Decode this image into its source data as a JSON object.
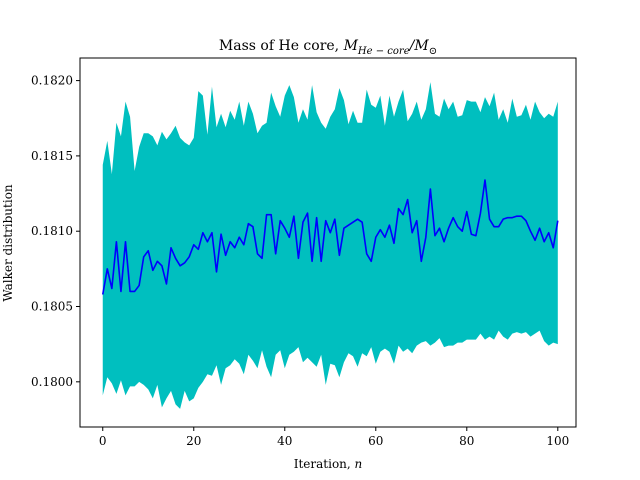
{
  "chart_data": {
    "type": "line",
    "title_main": "Mass of He core, ",
    "title_math_base": "M",
    "title_math_sub": "He − core",
    "title_math_tail": "/M",
    "title_math_tail_sub": "⊙",
    "xlabel_text": "Iteration, ",
    "xlabel_math": "n",
    "ylabel": "Walker distribution",
    "xlim": [
      -5,
      104
    ],
    "ylim": [
      0.1797,
      0.18215
    ],
    "xticks": [
      0,
      20,
      40,
      60,
      80,
      100
    ],
    "yticks": [
      0.18,
      0.1805,
      0.181,
      0.1815,
      0.182
    ],
    "ytick_labels": [
      "0.1800",
      "0.1805",
      "0.1810",
      "0.1815",
      "0.1820"
    ],
    "line_color": "#0000ff",
    "band_color": "#00bfbf",
    "series": [
      {
        "values": [
          0.18058,
          0.18075,
          0.18062,
          0.18093,
          0.1806,
          0.18093,
          0.1806,
          0.1806,
          0.18064,
          0.18083,
          0.18087,
          0.18074,
          0.1808,
          0.18077,
          0.18065,
          0.18089,
          0.18082,
          0.18077,
          0.18079,
          0.18083,
          0.18091,
          0.18088,
          0.18099,
          0.18093,
          0.18099,
          0.18073,
          0.18098,
          0.18084,
          0.18093,
          0.18089,
          0.18096,
          0.18091,
          0.18105,
          0.18103,
          0.18085,
          0.18082,
          0.18111,
          0.18111,
          0.18085,
          0.18107,
          0.18102,
          0.18096,
          0.1811,
          0.18082,
          0.18106,
          0.18112,
          0.1808,
          0.18109,
          0.1808,
          0.18107,
          0.18099,
          0.18108,
          0.18084,
          0.18102,
          0.18104,
          0.18106,
          0.18108,
          0.18106,
          0.18085,
          0.1808,
          0.18096,
          0.18101,
          0.18096,
          0.18104,
          0.18092,
          0.18115,
          0.18111,
          0.18121,
          0.18099,
          0.18107,
          0.1808,
          0.18096,
          0.18128,
          0.18097,
          0.18102,
          0.18093,
          0.18102,
          0.18109,
          0.18103,
          0.181,
          0.18113,
          0.18098,
          0.18097,
          0.18112,
          0.18134,
          0.18108,
          0.18103,
          0.18103,
          0.18108,
          0.18109,
          0.18109,
          0.1811,
          0.1811,
          0.18107,
          0.181,
          0.18094,
          0.18102,
          0.18093,
          0.18099,
          0.18089,
          0.18107
        ]
      }
    ],
    "band_upper": [
      0.18144,
      0.1816,
      0.18138,
      0.18172,
      0.18163,
      0.18186,
      0.18176,
      0.1814,
      0.18156,
      0.18165,
      0.18165,
      0.18163,
      0.18157,
      0.18166,
      0.18161,
      0.18165,
      0.1817,
      0.18162,
      0.18159,
      0.18157,
      0.18162,
      0.18193,
      0.1819,
      0.18164,
      0.18196,
      0.18169,
      0.18178,
      0.18169,
      0.1818,
      0.18174,
      0.18186,
      0.1817,
      0.18186,
      0.18178,
      0.18165,
      0.1817,
      0.18172,
      0.18192,
      0.18183,
      0.18176,
      0.1819,
      0.18197,
      0.18189,
      0.18172,
      0.18181,
      0.18174,
      0.18197,
      0.18179,
      0.18172,
      0.18168,
      0.18176,
      0.18181,
      0.18195,
      0.18187,
      0.18171,
      0.1818,
      0.18172,
      0.18172,
      0.18194,
      0.18184,
      0.18182,
      0.1819,
      0.1817,
      0.1819,
      0.18176,
      0.18186,
      0.18194,
      0.18173,
      0.18178,
      0.18186,
      0.18174,
      0.18181,
      0.18199,
      0.18178,
      0.18176,
      0.18188,
      0.18181,
      0.18186,
      0.18176,
      0.18177,
      0.18187,
      0.18186,
      0.18186,
      0.18179,
      0.18189,
      0.18183,
      0.18192,
      0.18174,
      0.18181,
      0.18172,
      0.18188,
      0.18176,
      0.18177,
      0.18184,
      0.18174,
      0.18186,
      0.18179,
      0.18175,
      0.18178,
      0.18176,
      0.18186
    ],
    "band_lower": [
      0.17991,
      0.18003,
      0.17999,
      0.17992,
      0.18001,
      0.17991,
      0.17997,
      0.17997,
      0.18,
      0.17998,
      0.17995,
      0.17989,
      0.17998,
      0.17983,
      0.17989,
      0.17994,
      0.17985,
      0.17982,
      0.17994,
      0.17987,
      0.17989,
      0.17996,
      0.18,
      0.18005,
      0.18004,
      0.18011,
      0.17998,
      0.18009,
      0.18011,
      0.18015,
      0.18012,
      0.18005,
      0.18018,
      0.18014,
      0.18009,
      0.18021,
      0.1801,
      0.18003,
      0.18018,
      0.18021,
      0.18009,
      0.18018,
      0.1802,
      0.18023,
      0.18013,
      0.18016,
      0.18013,
      0.1801,
      0.18018,
      0.17998,
      0.18012,
      0.18011,
      0.18003,
      0.18013,
      0.18019,
      0.18017,
      0.1801,
      0.18019,
      0.18017,
      0.18023,
      0.18012,
      0.1802,
      0.18022,
      0.1802,
      0.18012,
      0.18024,
      0.1802,
      0.18022,
      0.18019,
      0.18024,
      0.18026,
      0.18027,
      0.18024,
      0.18026,
      0.18029,
      0.18023,
      0.18024,
      0.18024,
      0.18026,
      0.18026,
      0.18028,
      0.18028,
      0.18028,
      0.18032,
      0.18028,
      0.1803,
      0.18028,
      0.18034,
      0.1803,
      0.18028,
      0.18032,
      0.18033,
      0.18032,
      0.18033,
      0.1803,
      0.18032,
      0.18034,
      0.18027,
      0.18024,
      0.18026,
      0.18025
    ]
  }
}
